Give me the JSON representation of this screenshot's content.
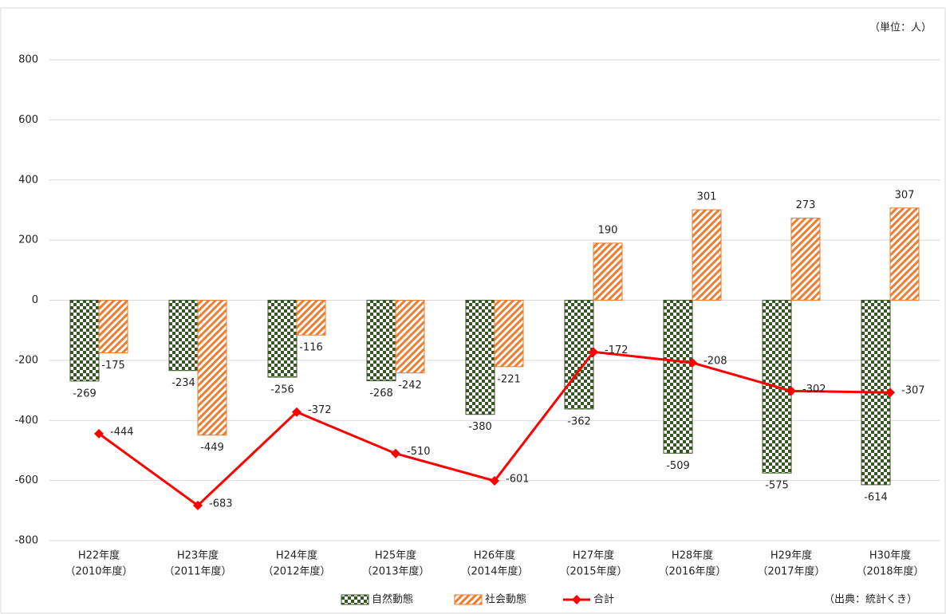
{
  "chart_data": {
    "type": "bar-line",
    "unit_note": "（単位：人）",
    "source_note": "（出典：統計くき）",
    "categories": [
      [
        "H22年度",
        "（2010年度）"
      ],
      [
        "H23年度",
        "（2011年度）"
      ],
      [
        "H24年度",
        "（2012年度）"
      ],
      [
        "H25年度",
        "（2013年度）"
      ],
      [
        "H26年度",
        "（2014年度）"
      ],
      [
        "H27年度",
        "（2015年度）"
      ],
      [
        "H28年度",
        "（2016年度）"
      ],
      [
        "H29年度",
        "（2017年度）"
      ],
      [
        "H30年度",
        "（2018年度）"
      ]
    ],
    "series": [
      {
        "name": "自然動態",
        "type": "bar",
        "pattern": "checker",
        "color": "#375623",
        "values": [
          -269,
          -234,
          -256,
          -268,
          -380,
          -362,
          -509,
          -575,
          -614
        ]
      },
      {
        "name": "社会動態",
        "type": "bar",
        "pattern": "hatch",
        "color": "#ed7d31",
        "values": [
          -175,
          -449,
          -116,
          -242,
          -221,
          190,
          301,
          273,
          307
        ]
      },
      {
        "name": "合計",
        "type": "line",
        "color": "#ff0000",
        "values": [
          -444,
          -683,
          -372,
          -510,
          -601,
          -172,
          -208,
          -302,
          -307
        ]
      }
    ],
    "ylim": [
      -800,
      800
    ],
    "yticks": [
      -800,
      -600,
      -400,
      -200,
      0,
      200,
      400,
      600,
      800
    ],
    "grid": true
  }
}
